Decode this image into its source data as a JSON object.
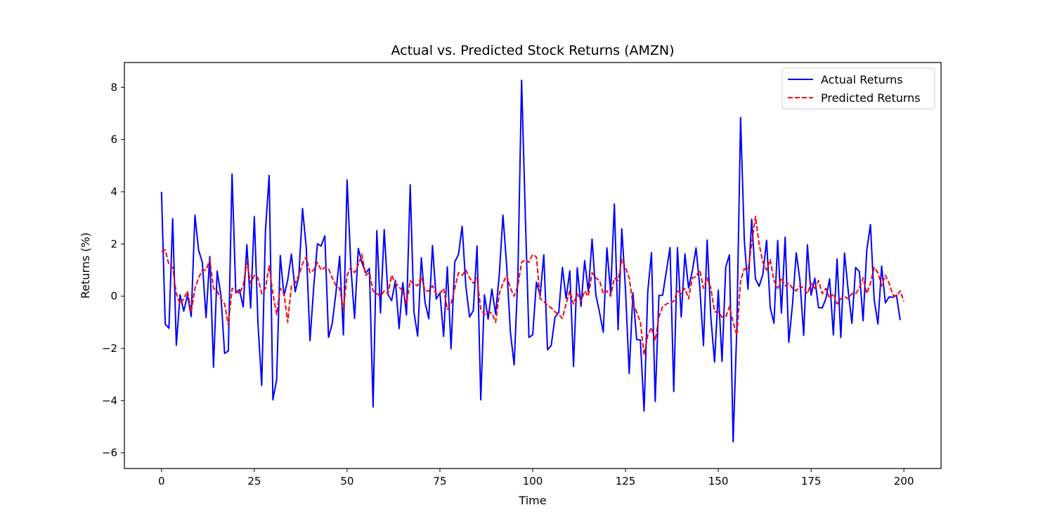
{
  "chart_data": {
    "type": "line",
    "title": "Actual vs. Predicted Stock Returns (AMZN)",
    "xlabel": "Time",
    "ylabel": "Returns (%)",
    "xlim": [
      -10,
      210
    ],
    "ylim": [
      -6.6,
      8.95
    ],
    "xticks": [
      0,
      25,
      50,
      75,
      100,
      125,
      150,
      175,
      200
    ],
    "yticks": [
      -6,
      -4,
      -2,
      0,
      2,
      4,
      6,
      8
    ],
    "grid": false,
    "legend_position": "upper-right",
    "series": [
      {
        "name": "Actual Returns",
        "color": "#0000ff",
        "style": "solid",
        "values": [
          4.0,
          -1.07,
          -1.23,
          2.97,
          -1.88,
          0.05,
          -0.57,
          0.05,
          -0.78,
          3.1,
          1.76,
          1.3,
          -0.82,
          1.52,
          -2.72,
          0.96,
          0.05,
          -2.19,
          -2.1,
          4.68,
          0.13,
          0.25,
          -0.41,
          1.97,
          -0.45,
          3.05,
          -1.06,
          -3.42,
          2.51,
          4.62,
          -3.97,
          -3.21,
          1.56,
          0.01,
          0.62,
          1.61,
          0.17,
          0.76,
          3.36,
          1.85,
          -1.7,
          0.35,
          2.01,
          1.92,
          2.31,
          -1.58,
          -1.04,
          0.15,
          1.53,
          -1.48,
          4.45,
          1.17,
          -0.85,
          1.83,
          1.29,
          0.89,
          1.06,
          -4.24,
          2.51,
          -0.64,
          2.55,
          0.07,
          -0.17,
          0.6,
          -1.24,
          0.52,
          -0.72,
          4.27,
          -0.6,
          -1.53,
          1.47,
          -0.24,
          -0.86,
          1.94,
          -0.11,
          0.13,
          -1.54,
          1.12,
          -2.01,
          1.31,
          1.6,
          2.68,
          0.38,
          -0.8,
          -0.55,
          1.92,
          -3.97,
          0.05,
          -0.88,
          0.27,
          -0.68,
          0.85,
          3.1,
          1.15,
          -1.39,
          -2.63,
          0.77,
          8.27,
          3.16,
          -1.58,
          -1.48,
          0.54,
          0.02,
          1.58,
          -2.05,
          -1.88,
          -0.8,
          -0.63,
          1.1,
          -0.09,
          0.97,
          -2.69,
          1.09,
          -0.39,
          1.36,
          0.16,
          2.19,
          0.06,
          -0.62,
          -1.38,
          1.85,
          0.11,
          3.53,
          -1.28,
          2.58,
          0.28,
          -2.96,
          0.13,
          -1.66,
          -1.68,
          -4.4,
          0.16,
          1.67,
          -4.03,
          0.03,
          0.04,
          0.94,
          1.86,
          -3.65,
          1.86,
          -0.8,
          1.62,
          0.31,
          0.96,
          1.85,
          0.37,
          -1.89,
          2.15,
          -0.82,
          -2.52,
          0.23,
          -2.5,
          1.12,
          1.58,
          -5.58,
          -1.18,
          6.84,
          2.15,
          0.27,
          2.95,
          0.67,
          0.38,
          0.84,
          2.14,
          -0.44,
          -1.03,
          2.13,
          -0.65,
          2.26,
          -1.77,
          -0.3,
          1.66,
          0.6,
          -1.5,
          1.97,
          0.04,
          0.69,
          -0.44,
          -0.45,
          -0.08,
          0.66,
          -1.48,
          1.43,
          -1.58,
          1.65,
          0.19,
          -1.04,
          1.1,
          0.95,
          -0.94,
          1.77,
          2.74,
          -0.13,
          -1.07,
          1.15,
          -0.26,
          -0.03,
          -0.04,
          0.04,
          -0.92
        ]
      },
      {
        "name": "Predicted Returns",
        "color": "#ff0000",
        "style": "dashed",
        "values": [
          1.7,
          1.78,
          1.2,
          1.1,
          0.1,
          -0.3,
          -0.1,
          0.2,
          -0.6,
          0.3,
          0.7,
          1.0,
          1.0,
          1.4,
          0.3,
          0.2,
          -0.1,
          -0.3,
          -1.1,
          0.3,
          0.2,
          0.1,
          0.4,
          1.3,
          0.5,
          0.8,
          0.7,
          0.1,
          0.3,
          1.15,
          0.1,
          -0.7,
          0.3,
          0.1,
          -1.0,
          0.4,
          0.5,
          0.8,
          1.25,
          1.5,
          0.9,
          1.0,
          1.3,
          1.0,
          1.1,
          1.05,
          0.7,
          0.4,
          0.3,
          -0.5,
          0.8,
          1.1,
          0.9,
          1.2,
          1.6,
          0.8,
          0.9,
          0.2,
          0.1,
          0.0,
          0.2,
          0.1,
          0.8,
          0.5,
          0.35,
          0.2,
          -0.3,
          0.6,
          0.45,
          0.4,
          0.75,
          0.2,
          0.2,
          0.4,
          0.1,
          0.1,
          0.3,
          -0.5,
          -0.3,
          0.3,
          0.9,
          0.8,
          1.0,
          0.7,
          0.5,
          0.7,
          -0.5,
          -0.7,
          -0.6,
          -0.65,
          -1.0,
          0.1,
          0.5,
          0.8,
          0.3,
          0.0,
          0.4,
          1.3,
          1.4,
          1.3,
          1.6,
          1.5,
          -0.1,
          -0.2,
          -0.35,
          -0.45,
          -0.6,
          -0.7,
          -0.85,
          -0.3,
          0.2,
          -0.3,
          0.1,
          -0.2,
          0.2,
          0.0,
          0.9,
          0.7,
          0.6,
          0.1,
          0.2,
          0.0,
          0.7,
          0.6,
          1.4,
          1.1,
          0.7,
          -0.3,
          -0.6,
          -1.0,
          -2.25,
          -1.5,
          -1.2,
          -1.7,
          -0.8,
          -0.4,
          -0.3,
          -0.25,
          -0.2,
          0.2,
          0.1,
          0.3,
          -0.1,
          0.7,
          0.75,
          1.0,
          0.3,
          0.7,
          0.3,
          -0.6,
          -0.6,
          -0.8,
          -0.8,
          -0.4,
          -1.0,
          -1.5,
          0.6,
          1.05,
          1.0,
          2.0,
          3.05,
          2.0,
          1.3,
          1.0,
          1.4,
          0.6,
          0.3,
          0.7,
          0.4,
          0.5,
          0.3,
          0.2,
          0.4,
          0.3,
          0.1,
          0.5,
          0.3,
          0.6,
          0.1,
          0.3,
          -0.1,
          0.1,
          -0.3,
          -0.1,
          0.0,
          -0.1,
          0.1,
          0.1,
          0.3,
          0.7,
          0.1,
          0.5,
          1.1,
          0.9,
          0.4,
          0.8,
          0.5,
          0.05,
          0.0,
          0.2,
          -0.2
        ]
      }
    ]
  }
}
